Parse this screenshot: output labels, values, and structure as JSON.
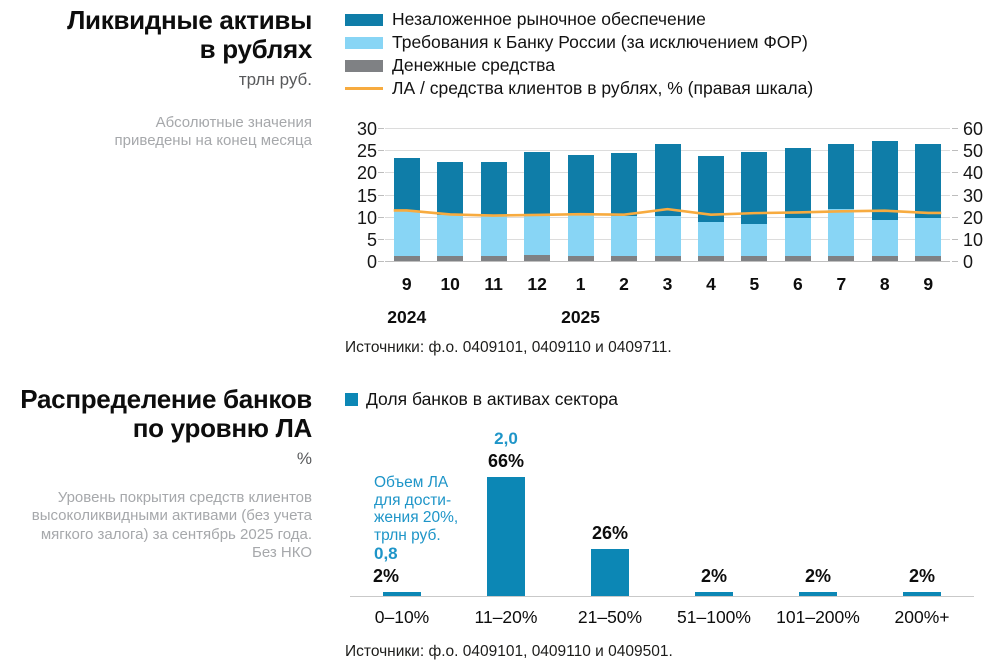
{
  "chart1": {
    "title_line1": "Ликвидные активы",
    "title_line2": "в рублях",
    "unit": "трлн руб.",
    "note_lines": [
      "Абсолютные значения",
      "приведены на конец месяца"
    ],
    "source": "Источники: ф.о. 0409101, 0409110 и 0409711."
  },
  "chart2": {
    "title_line1": "Распределение банков",
    "title_line2": "по уровню ЛА",
    "unit": "%",
    "note_lines": [
      "Уровень покрытия средств клиентов",
      "высоколиквидными активами (без учета",
      "мягкого залога) за сентябрь 2025 года.",
      "Без НКО"
    ],
    "legend_label": "Доля банков в активах сектора",
    "source": "Источники: ф.о. 0409101, 0409110 и 0409501."
  },
  "colors": {
    "dark_blue": "#0f7da8",
    "light_blue": "#88d5f5",
    "gray": "#7f8184",
    "orange": "#f7ab3f",
    "teal_bar": "#0c87b5",
    "annotation_blue": "#1e95c8",
    "note_gray": "#a6a8ab"
  },
  "chart_data": [
    {
      "type": "bar",
      "stacked": true,
      "title": "Ликвидные активы в рублях",
      "ylabel_left": "трлн руб.",
      "ylabel_right": "%",
      "categories": [
        "9",
        "10",
        "11",
        "12",
        "1",
        "2",
        "3",
        "4",
        "5",
        "6",
        "7",
        "8",
        "9"
      ],
      "year_labels": [
        {
          "label": "2024",
          "category_index": 0
        },
        {
          "label": "2025",
          "category_index": 4
        }
      ],
      "series": [
        {
          "name": "Денежные средства",
          "color": "#7f8184",
          "values": [
            1.1,
            1.1,
            1.1,
            1.3,
            1.1,
            1.1,
            1.2,
            1.1,
            1.1,
            1.1,
            1.2,
            1.1,
            1.1
          ]
        },
        {
          "name": "Требования к Банку России (за исключением ФОР)",
          "color": "#88d5f5",
          "values": [
            10.2,
            9.2,
            9.2,
            9.3,
            9.4,
            9.1,
            8.9,
            7.8,
            7.3,
            8.5,
            10.5,
            8.1,
            8.7
          ]
        },
        {
          "name": "Незаложенное рыночное обеспечение",
          "color": "#0f7da8",
          "values": [
            12.0,
            12.0,
            12.0,
            14.0,
            13.4,
            14.2,
            16.3,
            14.9,
            16.2,
            15.9,
            14.8,
            17.8,
            16.5
          ]
        }
      ],
      "line_series": {
        "name": "ЛА / средства клиентов в рублях, % (правая шкала)",
        "color": "#f7ab3f",
        "axis": "right",
        "values": [
          22.8,
          21.0,
          20.5,
          20.8,
          21.1,
          20.9,
          23.4,
          20.9,
          21.6,
          21.9,
          22.4,
          22.7,
          21.7
        ]
      },
      "legend": [
        {
          "label": "Незаложенное рыночное обеспечение",
          "color": "#0f7da8",
          "type": "box"
        },
        {
          "label": "Требования к Банку России (за исключением ФОР)",
          "color": "#88d5f5",
          "type": "box"
        },
        {
          "label": "Денежные средства",
          "color": "#7f8184",
          "type": "box"
        },
        {
          "label": "ЛА / средства клиентов в рублях, % (правая шкала)",
          "color": "#f7ab3f",
          "type": "line"
        }
      ],
      "left_axis": {
        "min": 0,
        "max": 30,
        "step": 5,
        "ticks": [
          "30",
          "25",
          "20",
          "15",
          "10",
          "5",
          "0"
        ]
      },
      "right_axis": {
        "min": 0,
        "max": 60,
        "step": 10,
        "ticks": [
          "60",
          "50",
          "40",
          "30",
          "20",
          "10",
          "0"
        ]
      },
      "grid": true
    },
    {
      "type": "bar",
      "title": "Распределение банков по уровню ЛА",
      "ylabel": "%",
      "legend": "Доля банков в активах сектора",
      "categories": [
        "0–10%",
        "11–20%",
        "21–50%",
        "51–100%",
        "101–200%",
        "200%+"
      ],
      "values": [
        2,
        66,
        26,
        2,
        2,
        2
      ],
      "value_labels": [
        "2%",
        "66%",
        "26%",
        "2%",
        "2%",
        "2%"
      ],
      "bar_color": "#0c87b5",
      "ylim": [
        0,
        70
      ],
      "annotation": {
        "color": "#1e95c8",
        "text_lines": [
          "Объем ЛА",
          "для дости-",
          "жения 20%,",
          "трлн руб."
        ],
        "values": [
          {
            "category_index": 0,
            "label": "0,8",
            "align": "left"
          },
          {
            "category_index": 1,
            "label": "2,0",
            "align": "center"
          }
        ]
      }
    }
  ]
}
